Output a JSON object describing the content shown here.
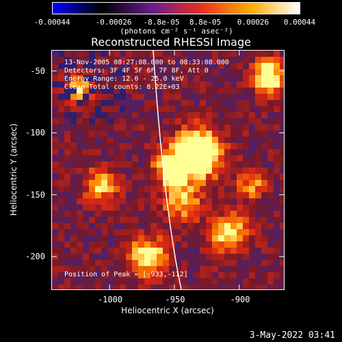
{
  "colorbar": {
    "ticks": [
      "-0.00044",
      "-0.00026",
      "-8.8e-05",
      "8.8e-05",
      "0.00026",
      "0.00044"
    ],
    "unit_label": "(photons cm⁻² s⁻¹ asec⁻²)",
    "colors": [
      "#0000ff",
      "#000000",
      "#6a1a8e",
      "#e83020",
      "#ffaa00",
      "#ffffff"
    ]
  },
  "title": "Reconstructed RHESSI Image",
  "annotations": {
    "time_range": "13-Nov-2005 08:27:08.000 to 08:33:08.000",
    "detectors": "Detectors: 3F 4F 5F 6F 7F 8F, Att 0",
    "energy_range": "Energy Range: 12.0 - 25.0 keV",
    "clean": "Clean      Total counts: 8.22E+03",
    "peak": "Position of Peak = [-933,-112]"
  },
  "chart_data": {
    "type": "heatmap",
    "title": "Reconstructed RHESSI Image",
    "xlabel": "Heliocentric X (arcsec)",
    "ylabel": "Heliocentric Y (arcsec)",
    "xlim": [
      -1045,
      -865
    ],
    "ylim": [
      -227,
      -33
    ],
    "x_ticks": [
      "-1000",
      "-950",
      "-900"
    ],
    "y_ticks": [
      "-50",
      "-100",
      "-150",
      "-200"
    ],
    "x_tick_values": [
      -1000,
      -950,
      -900
    ],
    "y_tick_values": [
      -50,
      -100,
      -150,
      -200
    ],
    "peak_position": [
      -933,
      -112
    ],
    "colorbar_range": [
      -0.00044,
      0.00044
    ]
  },
  "axes": {
    "xlabel": "Heliocentric X (arcsec)",
    "ylabel": "Heliocentric Y (arcsec)",
    "x_ticks": [
      "-1000",
      "-950",
      "-900"
    ],
    "y_ticks": [
      "-50",
      "-100",
      "-150",
      "-200"
    ]
  },
  "timestamp": "3-May-2022 03:41"
}
